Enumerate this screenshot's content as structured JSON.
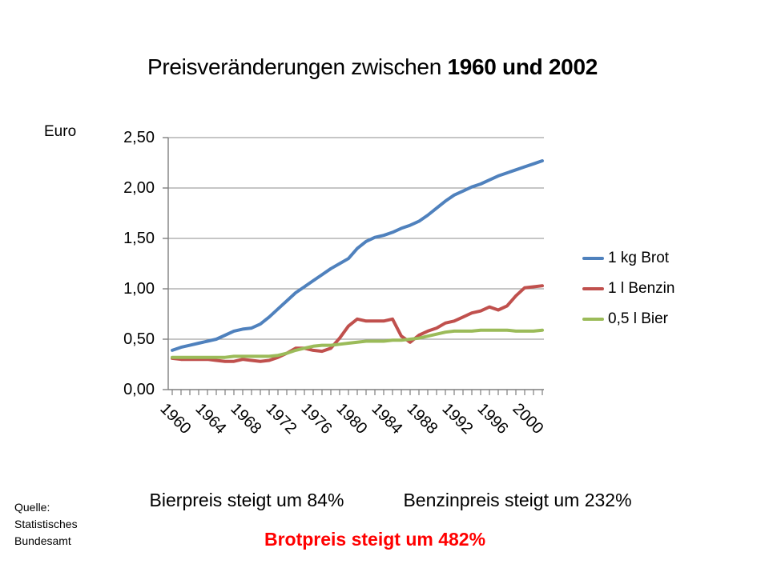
{
  "title": {
    "normal": "Preisveränderungen zwischen ",
    "bold": "1960 und 2002"
  },
  "y_axis_unit": "Euro",
  "chart_data": {
    "type": "line",
    "title": "Preisveränderungen zwischen 1960 und 2002",
    "ylabel": "Euro",
    "xlabel": "",
    "ylim": [
      0,
      2.5
    ],
    "grid": true,
    "legend_position": "right",
    "ytick_values": [
      0,
      0.5,
      1.0,
      1.5,
      2.0,
      2.5
    ],
    "ytick_labels": [
      "0,00",
      "0,50",
      "1,00",
      "1,50",
      "2,00",
      "2,50"
    ],
    "xtick_labels": [
      "1960",
      "1964",
      "1968",
      "1972",
      "1976",
      "1980",
      "1984",
      "1988",
      "1992",
      "1996",
      "2000"
    ],
    "xtick_label_every": 4,
    "x": [
      1960,
      1961,
      1962,
      1963,
      1964,
      1965,
      1966,
      1967,
      1968,
      1969,
      1970,
      1971,
      1972,
      1973,
      1974,
      1975,
      1976,
      1977,
      1978,
      1979,
      1980,
      1981,
      1982,
      1983,
      1984,
      1985,
      1986,
      1987,
      1988,
      1989,
      1990,
      1991,
      1992,
      1993,
      1994,
      1995,
      1996,
      1997,
      1998,
      1999,
      2000,
      2001,
      2002
    ],
    "series": [
      {
        "name": "1 kg Brot",
        "color": "#4f81bd",
        "values": [
          0.39,
          0.42,
          0.44,
          0.46,
          0.48,
          0.5,
          0.54,
          0.58,
          0.6,
          0.61,
          0.65,
          0.72,
          0.8,
          0.88,
          0.96,
          1.02,
          1.08,
          1.14,
          1.2,
          1.25,
          1.3,
          1.4,
          1.47,
          1.51,
          1.53,
          1.56,
          1.6,
          1.63,
          1.67,
          1.73,
          1.8,
          1.87,
          1.93,
          1.97,
          2.01,
          2.04,
          2.08,
          2.12,
          2.15,
          2.18,
          2.21,
          2.24,
          2.27
        ]
      },
      {
        "name": "1 l Benzin",
        "color": "#c0504d",
        "values": [
          0.31,
          0.3,
          0.3,
          0.3,
          0.3,
          0.29,
          0.28,
          0.28,
          0.3,
          0.29,
          0.28,
          0.29,
          0.32,
          0.36,
          0.41,
          0.41,
          0.39,
          0.38,
          0.41,
          0.51,
          0.63,
          0.7,
          0.68,
          0.68,
          0.68,
          0.7,
          0.53,
          0.47,
          0.54,
          0.58,
          0.61,
          0.66,
          0.68,
          0.72,
          0.76,
          0.78,
          0.82,
          0.79,
          0.83,
          0.93,
          1.01,
          1.02,
          1.03
        ]
      },
      {
        "name": "0,5 l Bier",
        "color": "#9bbb59",
        "values": [
          0.32,
          0.32,
          0.32,
          0.32,
          0.32,
          0.32,
          0.32,
          0.33,
          0.33,
          0.33,
          0.33,
          0.33,
          0.34,
          0.36,
          0.39,
          0.41,
          0.43,
          0.44,
          0.44,
          0.45,
          0.46,
          0.47,
          0.48,
          0.48,
          0.48,
          0.49,
          0.49,
          0.5,
          0.51,
          0.53,
          0.55,
          0.57,
          0.58,
          0.58,
          0.58,
          0.59,
          0.59,
          0.59,
          0.59,
          0.58,
          0.58,
          0.58,
          0.59
        ]
      }
    ],
    "axis_color": "#7f7f7f",
    "gridline_color": "#a3a3a3"
  },
  "annotations": {
    "bier": "Bierpreis steigt um 84%",
    "benzin": "Benzinpreis steigt um 232%",
    "brot": "Brotpreis steigt um 482%",
    "brot_color": "#ff0000"
  },
  "source": {
    "lines": [
      "Quelle:",
      "Statistisches",
      "Bundesamt"
    ]
  }
}
